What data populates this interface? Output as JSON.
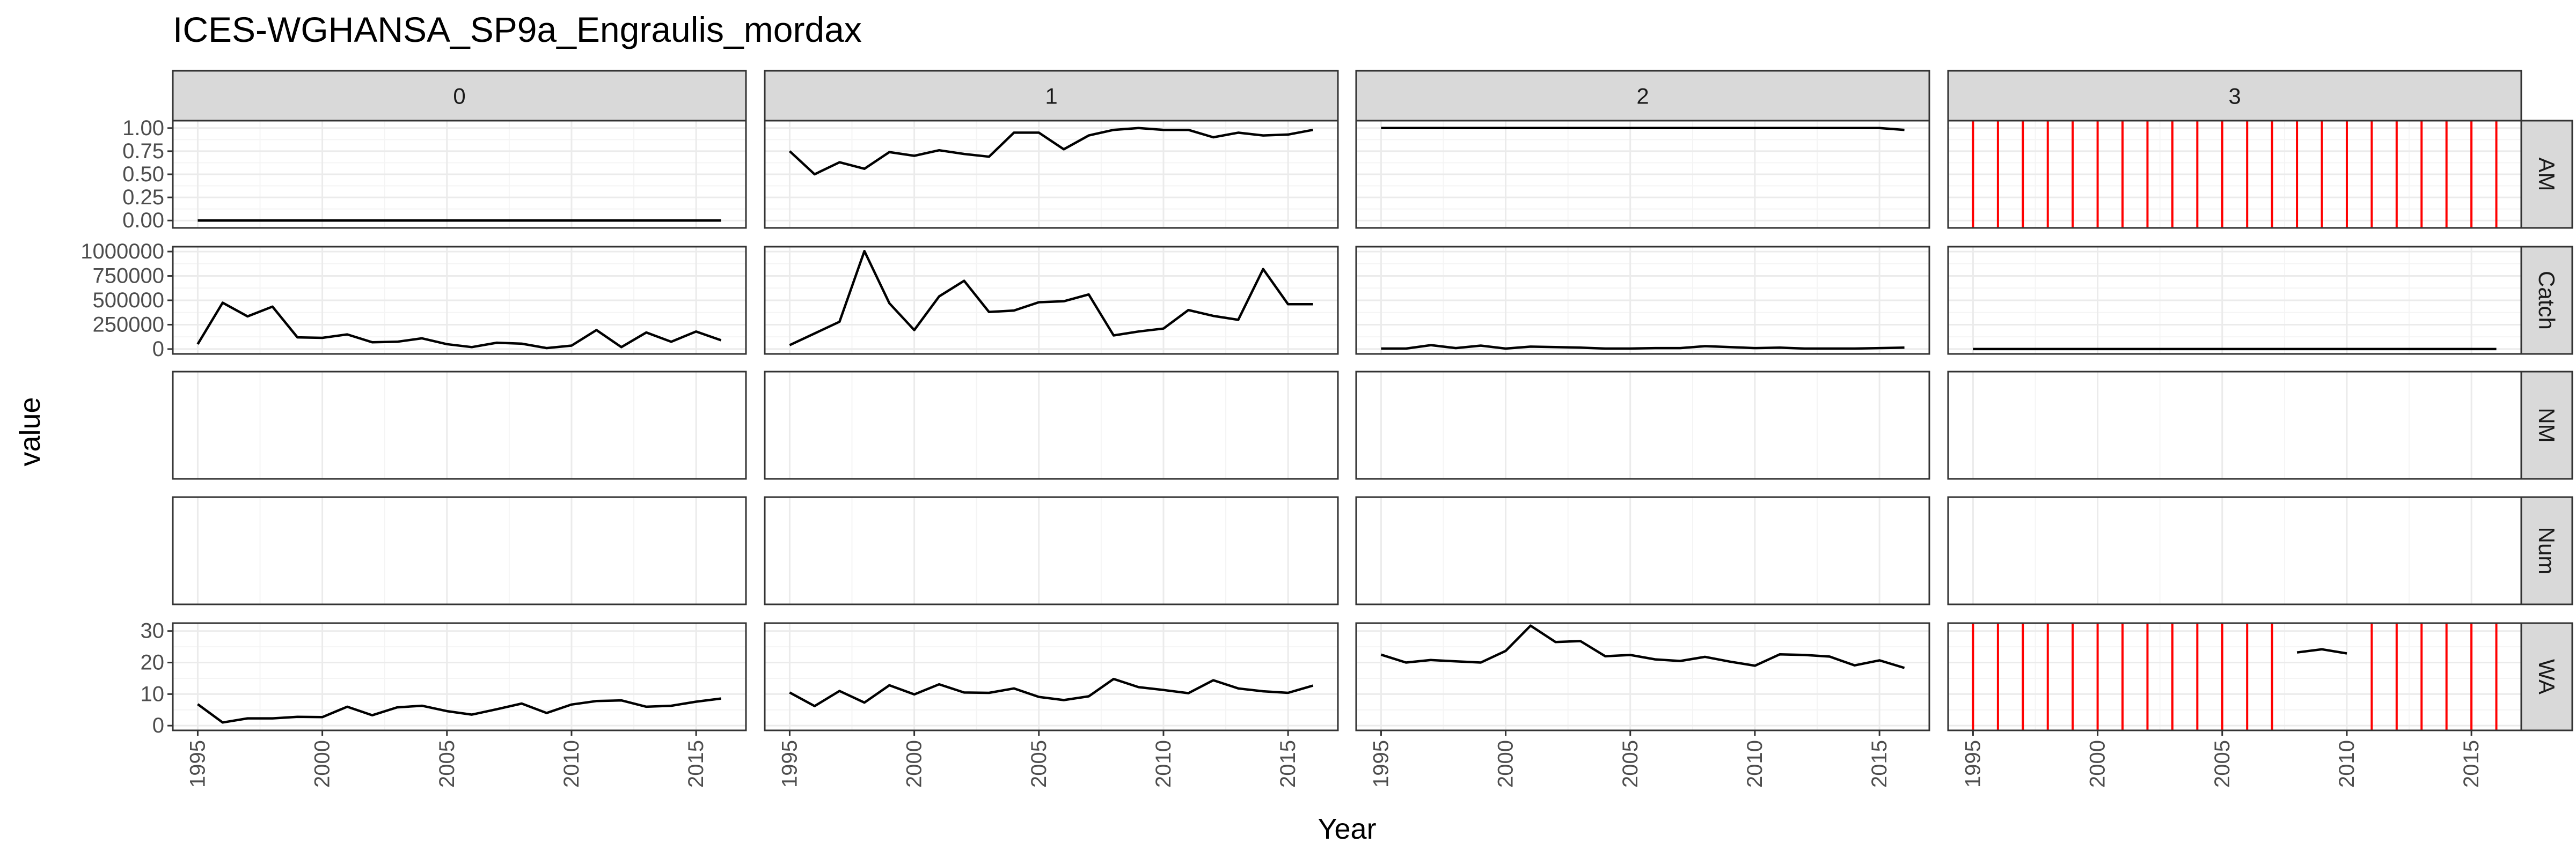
{
  "chart_data": {
    "type": "line",
    "title": "ICES-WGHANSA_SP9a_Engraulis_mordax",
    "xlabel": "Year",
    "ylabel": "value",
    "columns": [
      "0",
      "1",
      "2",
      "3"
    ],
    "rows": [
      "AM",
      "Catch",
      "NM",
      "Num",
      "WA"
    ],
    "x_ticks": [
      "1995",
      "2000",
      "2005",
      "2010",
      "2015"
    ],
    "xlim": [
      1994,
      2017
    ],
    "grid": true,
    "y_axes": {
      "AM": {
        "ylim": [
          -0.08,
          1.08
        ],
        "ticks": [
          0,
          0.25,
          0.5,
          0.75,
          1.0
        ],
        "tick_labels": [
          "0.00",
          "0.25",
          "0.50",
          "0.75",
          "1.00"
        ]
      },
      "Catch": {
        "ylim": [
          -50000,
          1050000
        ],
        "ticks": [
          0,
          250000,
          500000,
          750000,
          1000000
        ],
        "tick_labels": [
          "0",
          "250000",
          "500000",
          "750000",
          "1000000"
        ]
      },
      "NM": {
        "ylim": [
          0,
          1
        ],
        "ticks": [],
        "tick_labels": []
      },
      "Num": {
        "ylim": [
          0,
          1
        ],
        "ticks": [],
        "tick_labels": []
      },
      "WA": {
        "ylim": [
          -1.5,
          32.5
        ],
        "ticks": [
          0,
          10,
          20,
          30
        ],
        "tick_labels": [
          "0",
          "10",
          "20",
          "30"
        ]
      }
    },
    "series": [
      {
        "row": "AM",
        "col": "0",
        "x": [
          1995,
          1996,
          1997,
          1998,
          1999,
          2000,
          2001,
          2002,
          2003,
          2004,
          2005,
          2006,
          2007,
          2008,
          2009,
          2010,
          2011,
          2012,
          2013,
          2014,
          2015,
          2016
        ],
        "y": [
          0,
          0,
          0,
          0,
          0,
          0,
          0,
          0,
          0,
          0,
          0,
          0,
          0,
          0,
          0,
          0,
          0,
          0,
          0,
          0,
          0,
          0
        ]
      },
      {
        "row": "AM",
        "col": "1",
        "x": [
          1995,
          1996,
          1997,
          1998,
          1999,
          2000,
          2001,
          2002,
          2003,
          2004,
          2005,
          2006,
          2007,
          2008,
          2009,
          2010,
          2011,
          2012,
          2013,
          2014,
          2015,
          2016
        ],
        "y": [
          0.75,
          0.5,
          0.63,
          0.56,
          0.74,
          0.7,
          0.76,
          0.72,
          0.69,
          0.95,
          0.95,
          0.77,
          0.92,
          0.98,
          1.0,
          0.98,
          0.98,
          0.9,
          0.95,
          0.92,
          0.93,
          0.98
        ]
      },
      {
        "row": "AM",
        "col": "2",
        "x": [
          1995,
          1996,
          1997,
          1998,
          1999,
          2000,
          2001,
          2002,
          2003,
          2004,
          2005,
          2006,
          2007,
          2008,
          2009,
          2010,
          2011,
          2012,
          2013,
          2014,
          2015,
          2016
        ],
        "y": [
          1,
          1,
          1,
          1,
          1,
          1,
          1,
          1,
          1,
          1,
          1,
          1,
          1,
          1,
          1,
          1,
          1,
          1,
          1,
          1,
          1,
          0.98
        ]
      },
      {
        "row": "Catch",
        "col": "0",
        "x": [
          1995,
          1996,
          1997,
          1998,
          1999,
          2000,
          2001,
          2002,
          2003,
          2004,
          2005,
          2006,
          2007,
          2008,
          2009,
          2010,
          2011,
          2012,
          2013,
          2014,
          2015,
          2016
        ],
        "y": [
          50000,
          475000,
          335000,
          435000,
          120000,
          115000,
          150000,
          70000,
          75000,
          110000,
          50000,
          20000,
          65000,
          55000,
          10000,
          35000,
          195000,
          20000,
          170000,
          75000,
          180000,
          90000
        ]
      },
      {
        "row": "Catch",
        "col": "1",
        "x": [
          1995,
          1996,
          1997,
          1998,
          1999,
          2000,
          2001,
          2002,
          2003,
          2004,
          2005,
          2006,
          2007,
          2008,
          2009,
          2010,
          2011,
          2012,
          2013,
          2014,
          2015,
          2016
        ],
        "y": [
          40000,
          160000,
          280000,
          1005000,
          470000,
          195000,
          540000,
          700000,
          380000,
          395000,
          480000,
          490000,
          560000,
          140000,
          180000,
          210000,
          400000,
          340000,
          300000,
          820000,
          460000,
          460000
        ]
      },
      {
        "row": "Catch",
        "col": "2",
        "x": [
          1995,
          1996,
          1997,
          1998,
          1999,
          2000,
          2001,
          2002,
          2003,
          2004,
          2005,
          2006,
          2007,
          2008,
          2009,
          2010,
          2011,
          2012,
          2013,
          2014,
          2015,
          2016
        ],
        "y": [
          5000,
          5000,
          40000,
          10000,
          35000,
          5000,
          25000,
          20000,
          15000,
          5000,
          5000,
          10000,
          10000,
          30000,
          20000,
          10000,
          15000,
          5000,
          5000,
          5000,
          10000,
          15000
        ]
      },
      {
        "row": "Catch",
        "col": "3",
        "x": [
          1995,
          1996,
          1997,
          1998,
          1999,
          2000,
          2001,
          2002,
          2003,
          2004,
          2005,
          2006,
          2007,
          2008,
          2009,
          2010,
          2011,
          2012,
          2013,
          2014,
          2015,
          2016
        ],
        "y": [
          0,
          0,
          0,
          0,
          0,
          0,
          0,
          0,
          0,
          0,
          0,
          0,
          0,
          0,
          0,
          0,
          0,
          0,
          0,
          0,
          0,
          0
        ]
      },
      {
        "row": "WA",
        "col": "0",
        "x": [
          1995,
          1996,
          1997,
          1998,
          1999,
          2000,
          2001,
          2002,
          2003,
          2004,
          2005,
          2006,
          2007,
          2008,
          2009,
          2010,
          2011,
          2012,
          2013,
          2014,
          2015,
          2016
        ],
        "y": [
          6.8,
          1.0,
          2.3,
          2.3,
          2.8,
          2.7,
          6.0,
          3.3,
          5.8,
          6.3,
          4.6,
          3.5,
          5.2,
          7.0,
          4.0,
          6.7,
          7.8,
          8.0,
          6.0,
          6.3,
          7.6,
          8.6
        ]
      },
      {
        "row": "WA",
        "col": "1",
        "x": [
          1995,
          1996,
          1997,
          1998,
          1999,
          2000,
          2001,
          2002,
          2003,
          2004,
          2005,
          2006,
          2007,
          2008,
          2009,
          2010,
          2011,
          2012,
          2013,
          2014,
          2015,
          2016
        ],
        "y": [
          10.5,
          6.2,
          11.0,
          7.3,
          12.8,
          9.9,
          13.1,
          10.5,
          10.4,
          11.8,
          9.1,
          8.1,
          9.3,
          14.8,
          12.2,
          11.3,
          10.3,
          14.4,
          11.8,
          10.9,
          10.4,
          12.7
        ]
      },
      {
        "row": "WA",
        "col": "2",
        "x": [
          1995,
          1996,
          1997,
          1998,
          1999,
          2000,
          2001,
          2002,
          2003,
          2004,
          2005,
          2006,
          2007,
          2008,
          2009,
          2010,
          2011,
          2012,
          2013,
          2014,
          2015,
          2016
        ],
        "y": [
          22.5,
          20.0,
          20.8,
          20.4,
          20.0,
          23.7,
          31.7,
          26.5,
          26.8,
          22.0,
          22.4,
          21.0,
          20.5,
          21.8,
          20.3,
          19.0,
          22.6,
          22.4,
          21.9,
          19.1,
          20.7,
          18.3
        ]
      },
      {
        "row": "WA",
        "col": "3",
        "x": [
          2008,
          2009,
          2010
        ],
        "y": [
          23.2,
          24.2,
          22.9
        ]
      }
    ],
    "reference_lines": [
      {
        "row": "AM",
        "col": "3",
        "color": "#ff0000",
        "x": [
          1995,
          1996,
          1997,
          1998,
          1999,
          2000,
          2001,
          2002,
          2003,
          2004,
          2005,
          2006,
          2007,
          2008,
          2009,
          2010,
          2011,
          2012,
          2013,
          2014,
          2015,
          2016
        ]
      },
      {
        "row": "WA",
        "col": "3",
        "color": "#ff0000",
        "x": [
          1995,
          1996,
          1997,
          1998,
          1999,
          2000,
          2001,
          2002,
          2003,
          2004,
          2005,
          2006,
          2007,
          2011,
          2012,
          2013,
          2014,
          2015,
          2016
        ]
      }
    ],
    "colors": {
      "line": "#000000",
      "reference": "#ff0000",
      "strip": "#d9d9d9",
      "grid_major": "#ebebeb",
      "grid_minor": "#f4f4f4",
      "border": "#333333",
      "tick_text": "#4d4d4d"
    }
  }
}
